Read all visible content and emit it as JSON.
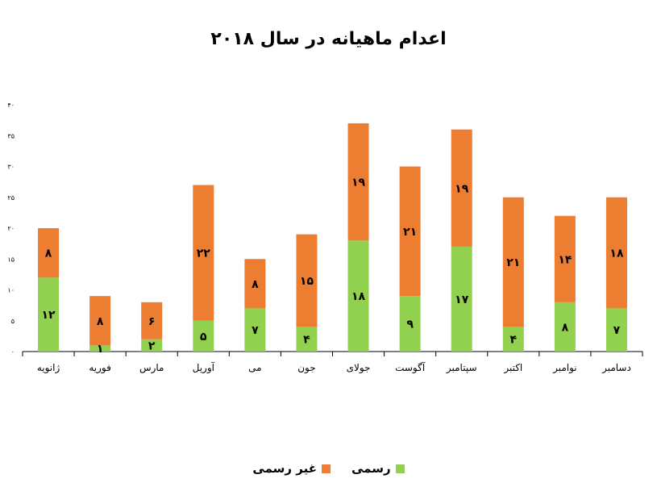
{
  "chart_data": {
    "type": "bar",
    "stacked": true,
    "title": "اعدام ماهیانه در سال ۲۰۱۸",
    "xlabel": "",
    "ylabel": "",
    "categories": [
      "ژانویه",
      "فوریه",
      "مارس",
      "آوریل",
      "می",
      "جون",
      "جولای",
      "آگوست",
      "سپتامبر",
      "اکتبر",
      "نوامبر",
      "دسامبر"
    ],
    "y_ticks": [
      "۰",
      "۵",
      "۱۰",
      "۱۵",
      "۲۰",
      "۲۵",
      "۳۰",
      "۳۵",
      "۴۰"
    ],
    "ylim": [
      0,
      40
    ],
    "series": [
      {
        "name": "رسمی",
        "color": "#92D050",
        "values": [
          12,
          1,
          2,
          5,
          7,
          4,
          18,
          9,
          17,
          4,
          8,
          7
        ],
        "labels": [
          "۱۲",
          "۱",
          "۲",
          "۵",
          "۷",
          "۴",
          "۱۸",
          "۹",
          "۱۷",
          "۴",
          "۸",
          "۷"
        ]
      },
      {
        "name": "غیر رسمی",
        "color": "#ED7D31",
        "values": [
          8,
          8,
          6,
          22,
          8,
          15,
          19,
          21,
          19,
          21,
          14,
          18
        ],
        "labels": [
          "۸",
          "۸",
          "۶",
          "۲۲",
          "۸",
          "۱۵",
          "۱۹",
          "۲۱",
          "۱۹",
          "۲۱",
          "۱۴",
          "۱۸"
        ]
      }
    ],
    "legend_position": "bottom",
    "grid": false
  }
}
